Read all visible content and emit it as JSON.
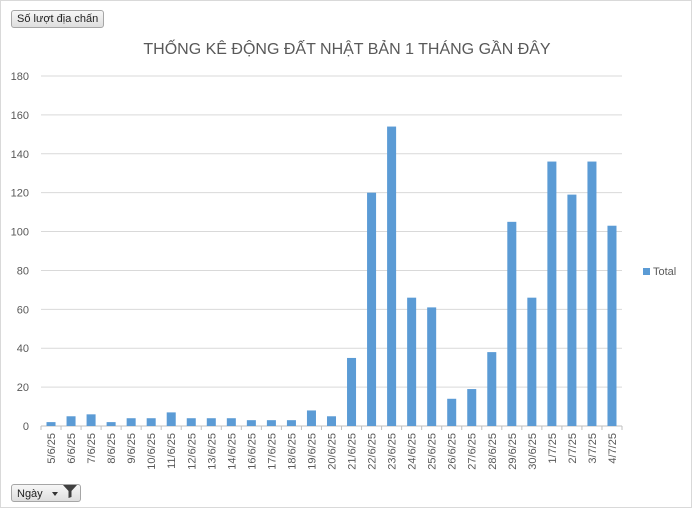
{
  "value_field_button": "Số lượt địa chấn",
  "axis_field_button": "Ngày",
  "icons": {
    "dropdown": "chevron-down-icon",
    "filter": "filter-icon"
  },
  "colors": {
    "bar": "#5b9bd5",
    "grid": "#d9d9d9",
    "text": "#595959"
  },
  "chart_data": {
    "type": "bar",
    "title": "THỐNG KÊ ĐỘNG ĐẤT NHẬT BẢN 1 THÁNG GẦN ĐÂY",
    "xlabel": "",
    "ylabel": "",
    "ylim": [
      0,
      180
    ],
    "yticks": [
      0,
      20,
      40,
      60,
      80,
      100,
      120,
      140,
      160,
      180
    ],
    "grid": true,
    "legend_position": "right",
    "categories": [
      "5/6/25",
      "6/6/25",
      "7/6/25",
      "8/6/25",
      "9/6/25",
      "10/6/25",
      "11/6/25",
      "12/6/25",
      "13/6/25",
      "14/6/25",
      "16/6/25",
      "17/6/25",
      "18/6/25",
      "19/6/25",
      "20/6/25",
      "21/6/25",
      "22/6/25",
      "23/6/25",
      "24/6/25",
      "25/6/25",
      "26/6/25",
      "27/6/25",
      "28/6/25",
      "29/6/25",
      "30/6/25",
      "1/7/25",
      "2/7/25",
      "3/7/25",
      "4/7/25"
    ],
    "series": [
      {
        "name": "Total",
        "values": [
          2,
          5,
          6,
          2,
          4,
          4,
          7,
          4,
          4,
          4,
          3,
          3,
          3,
          8,
          5,
          35,
          120,
          154,
          66,
          61,
          14,
          19,
          38,
          105,
          66,
          136,
          119,
          136,
          103
        ]
      }
    ]
  }
}
